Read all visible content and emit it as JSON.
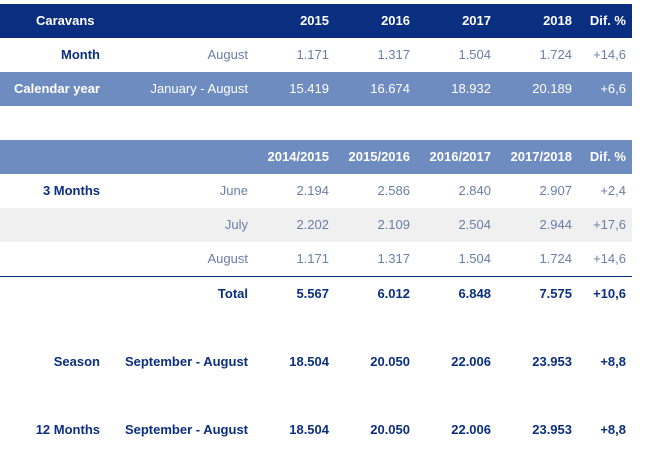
{
  "top": {
    "header": {
      "label": "Caravans",
      "years": [
        "2015",
        "2016",
        "2017",
        "2018"
      ],
      "dif": "Dif. %"
    },
    "month_row": {
      "label": "Month",
      "period": "August",
      "values": [
        "1.171",
        "1.317",
        "1.504",
        "1.724"
      ],
      "dif": "+14,6"
    },
    "calendar_row": {
      "label": "Calendar year",
      "period": "January - August",
      "values": [
        "15.419",
        "16.674",
        "18.932",
        "20.189"
      ],
      "dif": "+6,6"
    }
  },
  "bottom": {
    "header": {
      "seasons": [
        "2014/2015",
        "2015/2016",
        "2016/2017",
        "2017/2018"
      ],
      "dif": "Dif. %"
    },
    "three_months": {
      "label": "3 Months",
      "rows": [
        {
          "period": "June",
          "values": [
            "2.194",
            "2.586",
            "2.840",
            "2.907"
          ],
          "dif": "+2,4"
        },
        {
          "period": "July",
          "values": [
            "2.202",
            "2.109",
            "2.504",
            "2.944"
          ],
          "dif": "+17,6"
        },
        {
          "period": "August",
          "values": [
            "1.171",
            "1.317",
            "1.504",
            "1.724"
          ],
          "dif": "+14,6"
        }
      ]
    },
    "total_row": {
      "label": "Total",
      "values": [
        "5.567",
        "6.012",
        "6.848",
        "7.575"
      ],
      "dif": "+10,6"
    },
    "season_row": {
      "label": "Season",
      "period": "September - August",
      "values": [
        "18.504",
        "20.050",
        "22.006",
        "23.953"
      ],
      "dif": "+8,8"
    },
    "twelve_row": {
      "label": "12 Months",
      "period": "September - August",
      "values": [
        "18.504",
        "20.050",
        "22.006",
        "23.953"
      ],
      "dif": "+8,8"
    }
  },
  "colors": {
    "dark_blue": "#0b2f80",
    "mid_blue": "#6f8cc0",
    "grey_row": "#f0f0f0",
    "value_text": "#6a7ea8"
  }
}
